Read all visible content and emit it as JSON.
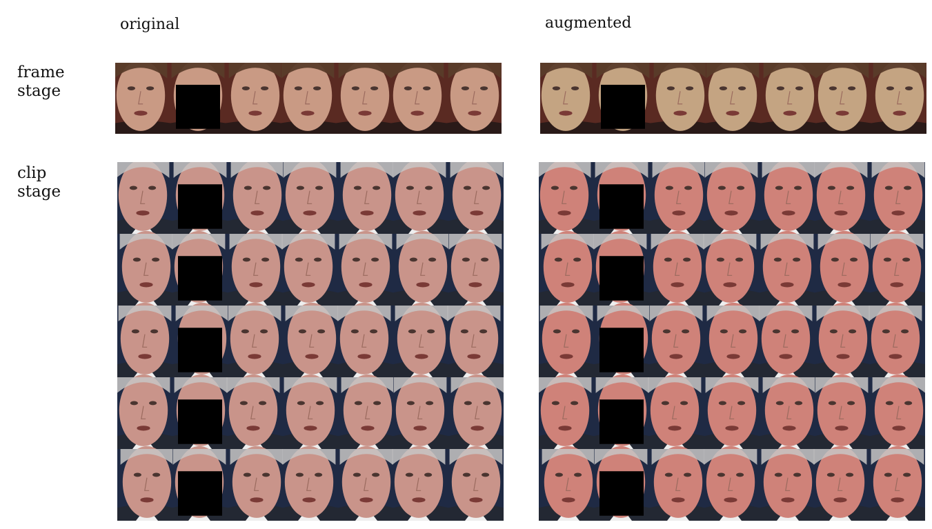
{
  "column_headers": {
    "original": "original",
    "augmented": "augmented"
  },
  "row_labels": {
    "frame_stage": [
      "frame",
      "stage"
    ],
    "clip_stage": [
      "clip",
      "stage"
    ]
  },
  "colors": {
    "skin_woman": "#c99a84",
    "skin_woman_aug": "#c4a482",
    "hair_woman": "#5a3c2a",
    "bg_woman": "#5a2a22",
    "skin_man": "#c9948a",
    "skin_man_aug": "#cf8279",
    "hair_man": "#c8c6c4",
    "bg_man": "#1f2a44",
    "shirt": "#eeeeee",
    "suit": "#232833",
    "mask": "#000000"
  },
  "grids": {
    "frame_original": {
      "rows": 1,
      "cols": 7,
      "masked_col": 1,
      "subject": "woman",
      "tone": "original"
    },
    "frame_augmented": {
      "rows": 1,
      "cols": 7,
      "masked_col": 1,
      "subject": "woman",
      "tone": "augmented"
    },
    "clip_original": {
      "rows": 5,
      "cols": 7,
      "masked_col": 1,
      "subject": "man",
      "tone": "original"
    },
    "clip_augmented": {
      "rows": 5,
      "cols": 7,
      "masked_col": 1,
      "subject": "man",
      "tone": "augmented"
    }
  }
}
